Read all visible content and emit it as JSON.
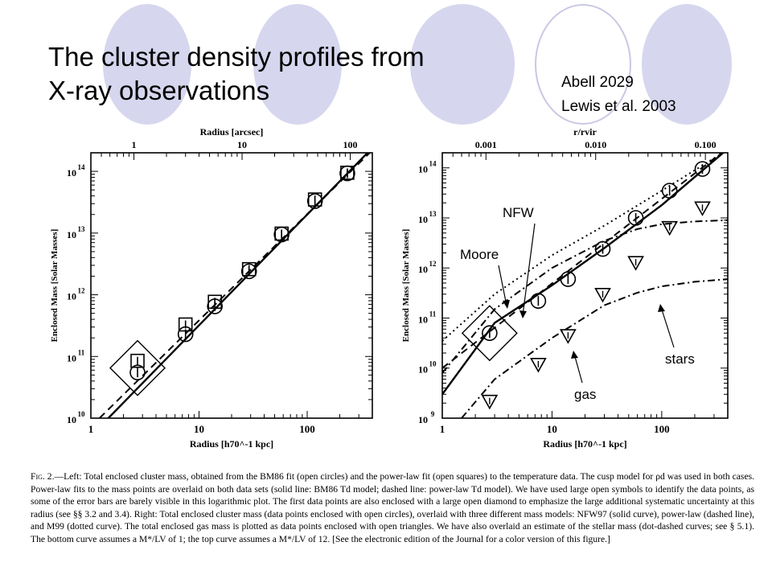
{
  "slide": {
    "title_line1": "The cluster density profiles from",
    "title_line2": "X-ray observations",
    "citation_line1": "Abell 2029",
    "citation_line2": "Lewis et al. 2003"
  },
  "caption": {
    "label": "Fig. 2.",
    "text": "—Left: Total enclosed cluster mass, obtained from the BM86 fit (open circles) and the power-law fit (open squares) to the temperature data. The cusp model for ρd was used in both cases. Power-law fits to the mass points are overlaid on both data sets (solid line: BM86 Td model; dashed line: power-law Td model). We have used large open symbols to identify the data points, as some of the error bars are barely visible in this logarithmic plot. The first data points are also enclosed with a large open diamond to emphasize the large additional systematic uncertainty at this radius (see §§ 3.2 and 3.4). Right: Total enclosed cluster mass (data points enclosed with open circles), overlaid with three different mass models: NFW97 (solid curve), power-law (dashed line), and M99 (dotted curve). The total enclosed gas mass is plotted as data points enclosed with open triangles. We have also overlaid an estimate of the stellar mass (dot-dashed curves; see § 5.1). The bottom curve assumes a M*/LV of 1; the top curve assumes a M*/LV of 12. [See the electronic edition of the Journal for a color version of this figure.]"
  },
  "annotations": {
    "nfw": "NFW",
    "moore": "Moore",
    "stars": "stars",
    "gas": "gas"
  },
  "chart_data": [
    {
      "type": "scatter",
      "x_scale": "log",
      "y_scale": "log",
      "xlim": [
        1,
        400
      ],
      "ylim": [
        10000000000.0,
        200000000000000.0
      ],
      "top_xlim": [
        0.4,
        160
      ],
      "xlabel": "Radius [h70^-1 kpc]",
      "ylabel": "Enclosed Mass [Solar Masses]",
      "top_xlabel": "Radius [arcsec]",
      "x_ticks": [
        {
          "v": 1,
          "label": "1"
        },
        {
          "v": 10,
          "label": "10"
        },
        {
          "v": 100,
          "label": "100"
        }
      ],
      "top_x_ticks": [
        {
          "v": 1,
          "label": "1"
        },
        {
          "v": 10,
          "label": "10"
        },
        {
          "v": 100,
          "label": "100"
        }
      ],
      "y_ticks": [
        {
          "e": 10,
          "label": "10"
        },
        {
          "e": 11,
          "label": "10"
        },
        {
          "e": 12,
          "label": "10"
        },
        {
          "e": 13,
          "label": "10"
        },
        {
          "e": 14,
          "label": "10"
        }
      ],
      "series": [
        {
          "marker": "circle",
          "x": [
            2.7,
            7.5,
            14,
            29,
            58,
            118,
            235
          ],
          "y": [
            55000000000.0,
            230000000000.0,
            650000000000.0,
            2400000000000.0,
            9500000000000.0,
            33000000000000.0,
            93000000000000.0
          ]
        },
        {
          "marker": "square",
          "x": [
            2.7,
            7.5,
            14,
            29,
            58,
            118,
            235
          ],
          "y": [
            85000000000.0,
            330000000000.0,
            770000000000.0,
            2600000000000.0,
            9800000000000.0,
            35000000000000.0,
            95000000000000.0
          ]
        }
      ],
      "lines": [
        {
          "style": "solid",
          "x": [
            1.45,
            400
          ],
          "y": [
            10000000000.0,
            240000000000000.0
          ]
        },
        {
          "style": "dashed",
          "x": [
            1.2,
            400
          ],
          "y": [
            10000000000.0,
            220000000000000.0
          ]
        }
      ],
      "diamond": {
        "x": 2.7,
        "y": 65000000000.0
      }
    },
    {
      "type": "scatter",
      "x_scale": "log",
      "y_scale": "log",
      "xlim": [
        1,
        400
      ],
      "ylim": [
        1000000000.0,
        200000000000000.0
      ],
      "top_xlim": [
        0.0004,
        0.16
      ],
      "xlabel": "Radius [h70^-1 kpc]",
      "ylabel": "Enclosed Mass [Solar Masses]",
      "top_xlabel": "r/rvir",
      "x_ticks": [
        {
          "v": 1,
          "label": "1"
        },
        {
          "v": 10,
          "label": "10"
        },
        {
          "v": 100,
          "label": "100"
        }
      ],
      "top_x_ticks": [
        {
          "v": 0.001,
          "label": "0.001"
        },
        {
          "v": 0.01,
          "label": "0.010"
        },
        {
          "v": 0.1,
          "label": "0.100"
        }
      ],
      "y_ticks": [
        {
          "e": 9,
          "label": "10"
        },
        {
          "e": 10,
          "label": "10"
        },
        {
          "e": 11,
          "label": "10"
        },
        {
          "e": 12,
          "label": "10"
        },
        {
          "e": 13,
          "label": "10"
        },
        {
          "e": 14,
          "label": "10"
        }
      ],
      "series": [
        {
          "marker": "circle",
          "x": [
            2.7,
            7.5,
            14,
            29,
            58,
            118,
            235
          ],
          "y": [
            50000000000.0,
            220000000000.0,
            600000000000.0,
            2400000000000.0,
            10000000000000.0,
            35000000000000.0,
            95000000000000.0
          ]
        },
        {
          "marker": "triangle",
          "x": [
            2.7,
            7.5,
            14,
            29,
            58,
            118,
            235
          ],
          "y": [
            2200000000.0,
            12000000000.0,
            45000000000.0,
            300000000000.0,
            1300000000000.0,
            6500000000000.0,
            16000000000000.0
          ]
        }
      ],
      "lines": [
        {
          "style": "solid",
          "x": [
            1,
            3,
            10,
            30,
            100,
            400
          ],
          "y": [
            3000000000.0,
            80000000000.0,
            450000000000.0,
            2500000000000.0,
            18000000000000.0,
            240000000000000.0
          ]
        },
        {
          "style": "dashed",
          "x": [
            1,
            400
          ],
          "y": [
            10000000000.0,
            250000000000000.0
          ]
        },
        {
          "style": "dotted",
          "x": [
            1,
            3,
            10,
            30,
            100,
            400
          ],
          "y": [
            35000000000.0,
            300000000000.0,
            1800000000000.0,
            7000000000000.0,
            35000000000000.0,
            230000000000000.0
          ]
        },
        {
          "style": "dashdot",
          "x": [
            1,
            3,
            10,
            30,
            60,
            100,
            200,
            400
          ],
          "y": [
            8000000000.0,
            150000000000.0,
            1000000000000.0,
            3500000000000.0,
            6000000000000.0,
            7500000000000.0,
            8500000000000.0,
            9000000000000.0
          ]
        },
        {
          "style": "dashdot",
          "x": [
            1.5,
            3,
            10,
            30,
            60,
            100,
            200,
            400
          ],
          "y": [
            1000000000.0,
            6000000000.0,
            40000000000.0,
            180000000000.0,
            320000000000.0,
            430000000000.0,
            530000000000.0,
            600000000000.0
          ]
        }
      ],
      "diamond": {
        "x": 2.7,
        "y": 50000000000.0
      }
    }
  ]
}
